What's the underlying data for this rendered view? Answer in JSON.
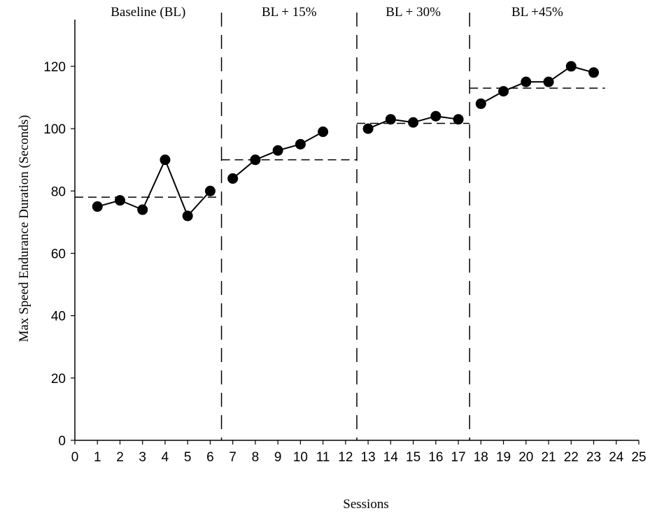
{
  "chart_data": {
    "type": "line",
    "title": "",
    "xlabel": "Sessions",
    "ylabel": "Max Speed Endurance Duration (Seconds)",
    "xlim": [
      0,
      25
    ],
    "ylim": [
      0,
      135
    ],
    "x_ticks": [
      0,
      1,
      2,
      3,
      4,
      5,
      6,
      7,
      8,
      9,
      10,
      11,
      12,
      13,
      14,
      15,
      16,
      17,
      18,
      19,
      20,
      21,
      22,
      23,
      24,
      25
    ],
    "y_ticks": [
      0,
      20,
      40,
      60,
      80,
      100,
      120
    ],
    "grid": false,
    "legend": "none",
    "marker_color": "#000000",
    "phases": [
      {
        "label": "Baseline (BL)",
        "start": 0,
        "end": 6.5,
        "mean": 78
      },
      {
        "label": "BL + 15%",
        "start": 6.5,
        "end": 12.5,
        "mean": 90
      },
      {
        "label": "BL + 30%",
        "start": 12.5,
        "end": 17.5,
        "mean": 101.7
      },
      {
        "label": "BL +45%",
        "start": 17.5,
        "end": 23.5,
        "mean": 113
      }
    ],
    "phase_change_lines": [
      6.5,
      12.5,
      17.5
    ],
    "series": [
      {
        "phase": 0,
        "x": [
          1,
          2,
          3,
          4,
          5,
          6
        ],
        "y": [
          75,
          77,
          74,
          90,
          72,
          80
        ]
      },
      {
        "phase": 1,
        "x": [
          7,
          8,
          9,
          10,
          11
        ],
        "y": [
          84,
          90,
          93,
          95,
          99
        ]
      },
      {
        "phase": 2,
        "x": [
          13,
          14,
          15,
          16,
          17
        ],
        "y": [
          100,
          103,
          102,
          104,
          103
        ]
      },
      {
        "phase": 3,
        "x": [
          18,
          19,
          20,
          21,
          22,
          23
        ],
        "y": [
          108,
          112,
          115,
          115,
          120,
          118
        ]
      }
    ]
  }
}
